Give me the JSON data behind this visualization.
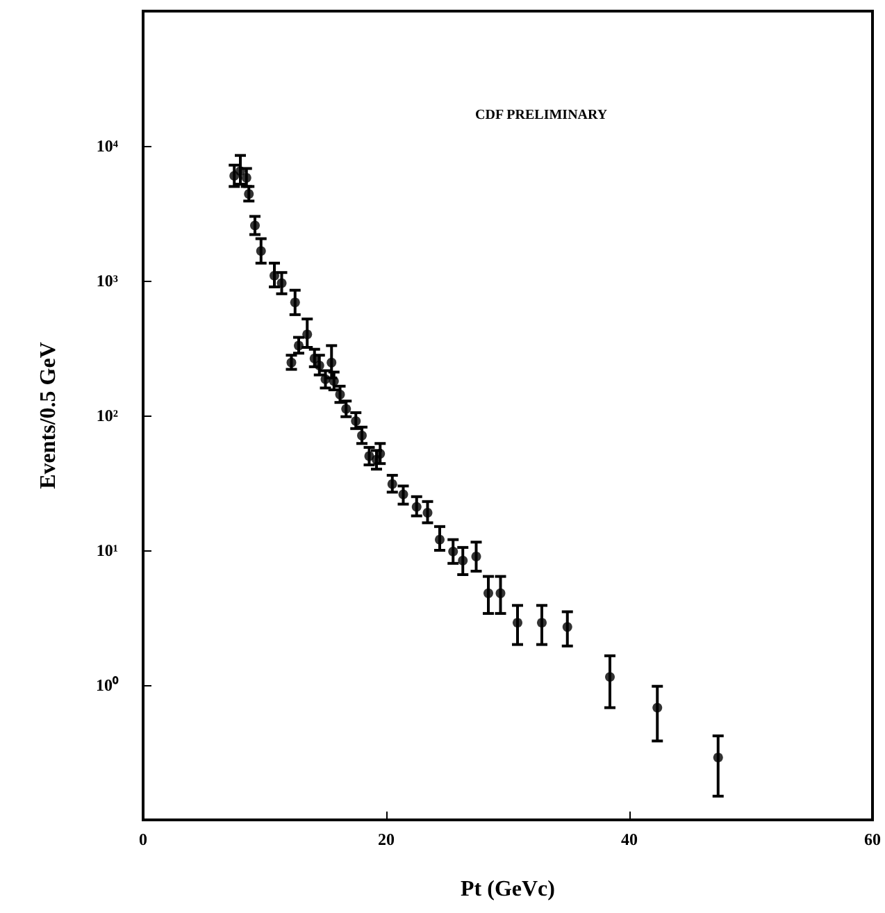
{
  "chart_data": {
    "type": "scatter",
    "xlabel": "Pt (GeVc)",
    "ylabel": "Events/0.5 GeV",
    "annotations": [
      "CDF PRELIMINARY"
    ],
    "x": [
      7.5,
      8.0,
      8.5,
      8.7,
      9.2,
      9.7,
      10.8,
      11.4,
      12.2,
      12.5,
      12.8,
      13.5,
      14.1,
      14.5,
      15.0,
      15.5,
      15.7,
      16.2,
      16.7,
      17.5,
      18.0,
      18.6,
      19.2,
      19.5,
      20.5,
      21.4,
      22.5,
      23.4,
      24.4,
      25.5,
      26.3,
      27.4,
      28.4,
      29.4,
      30.8,
      32.8,
      34.9,
      38.4,
      42.3,
      47.3
    ],
    "series": [
      {
        "color": "#000000",
        "values": [
          6000,
          6500,
          5800,
          4400,
          2570,
          1660,
          1090,
          960,
          247,
          690,
          330,
          400,
          265,
          235,
          186,
          247,
          180,
          143,
          112,
          91,
          71,
          50,
          47,
          52,
          31,
          26,
          21,
          19,
          12,
          9.8,
          8.4,
          9.0,
          4.8,
          4.8,
          2.9,
          2.9,
          2.7,
          1.15,
          0.68,
          0.29
        ],
        "errors": [
          [
            5000,
            7200
          ],
          [
            5200,
            8500
          ],
          [
            5000,
            6800
          ],
          [
            3900,
            5000
          ],
          [
            2200,
            3000
          ],
          [
            1350,
            2050
          ],
          [
            900,
            1350
          ],
          [
            800,
            1150
          ],
          [
            220,
            280
          ],
          [
            560,
            850
          ],
          [
            290,
            380
          ],
          [
            320,
            520
          ],
          [
            230,
            310
          ],
          [
            200,
            280
          ],
          [
            160,
            215
          ],
          [
            190,
            330
          ],
          [
            155,
            210
          ],
          [
            125,
            165
          ],
          [
            98,
            128
          ],
          [
            80,
            105
          ],
          [
            62,
            82
          ],
          [
            43,
            58
          ],
          [
            40,
            55
          ],
          [
            44,
            62
          ],
          [
            27,
            36
          ],
          [
            22,
            30
          ],
          [
            18,
            25
          ],
          [
            16,
            23
          ],
          [
            10,
            15
          ],
          [
            8.0,
            12
          ],
          [
            6.6,
            10.5
          ],
          [
            7.0,
            11.5
          ],
          [
            3.4,
            6.4
          ],
          [
            3.4,
            6.4
          ],
          [
            2.0,
            3.9
          ],
          [
            2.0,
            3.9
          ],
          [
            1.95,
            3.5
          ],
          [
            0.68,
            1.65
          ],
          [
            0.385,
            0.98
          ],
          [
            0.15,
            0.42
          ]
        ]
      }
    ],
    "log": "y",
    "marker": "circle",
    "grid": false,
    "xlim": [
      0,
      60
    ],
    "xticks": [
      0,
      20,
      40,
      60
    ],
    "ylim": [
      0.1,
      100000
    ],
    "yticks": [
      {
        "value": 1,
        "label": "10⁰"
      },
      {
        "value": 10,
        "label": "10¹"
      },
      {
        "value": 100,
        "label": "10²"
      },
      {
        "value": 1000,
        "label": "10³"
      },
      {
        "value": 10000,
        "label": "10⁴"
      }
    ]
  }
}
